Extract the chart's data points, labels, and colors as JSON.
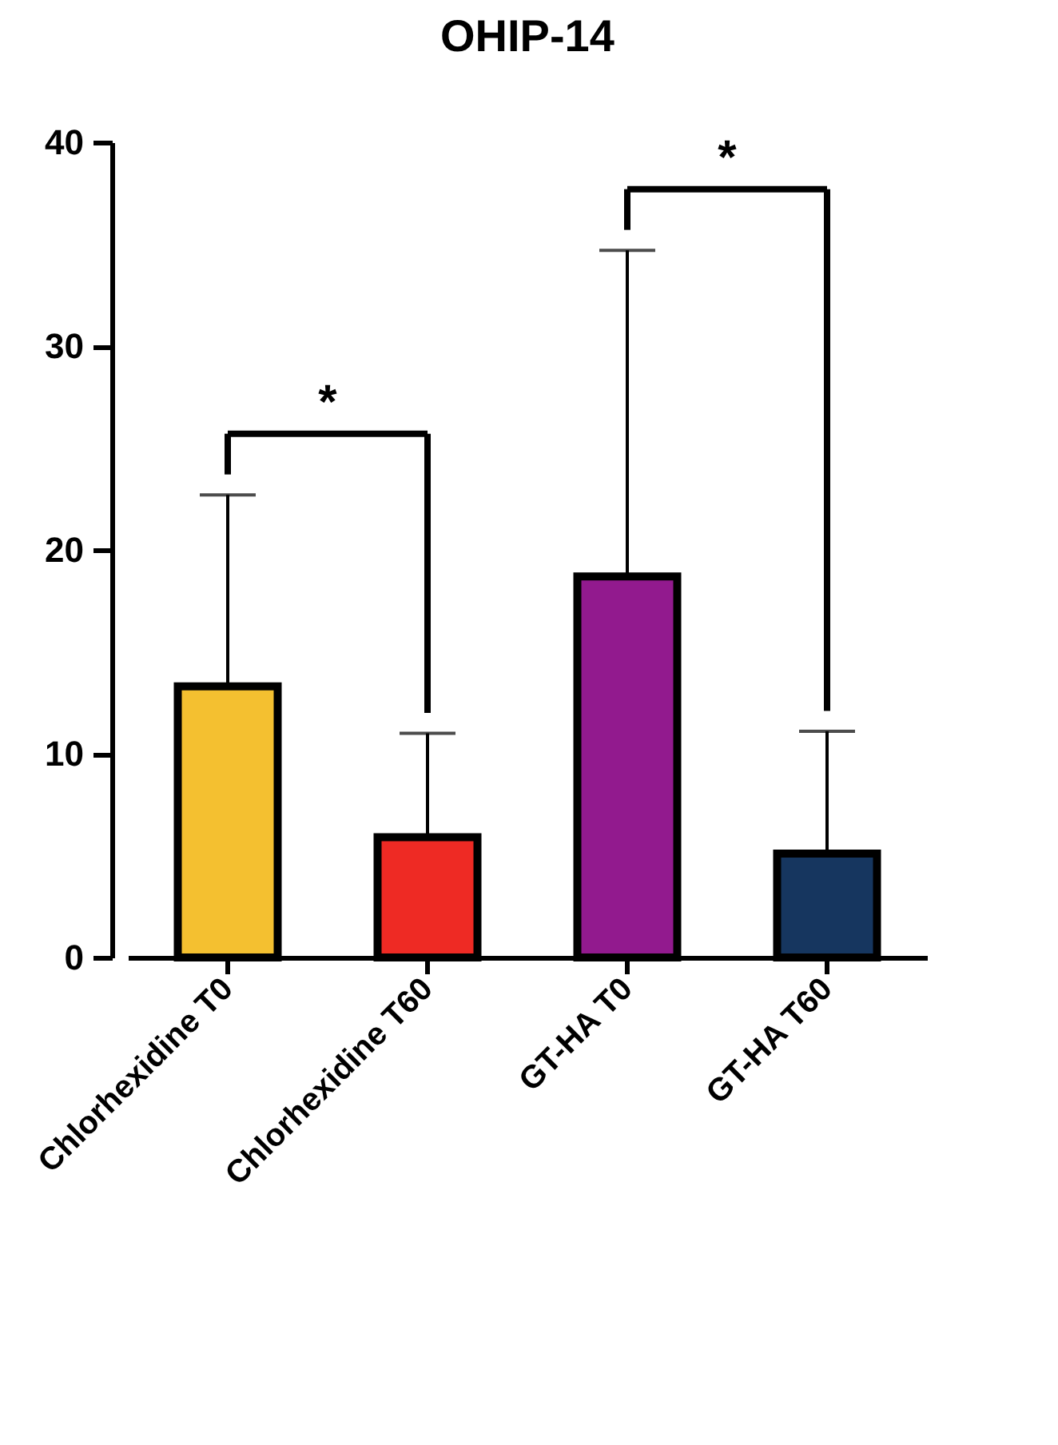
{
  "chart_data": {
    "type": "bar",
    "title": "OHIP-14",
    "categories": [
      "Chlorhexidine T0",
      "Chlorhexidine T60",
      "GT-HA T0",
      "GT-HA T60"
    ],
    "values": [
      13.3,
      5.9,
      18.7,
      5.1
    ],
    "colors": [
      "#f4c030",
      "#ee2a24",
      "#921a8e",
      "#16365f"
    ],
    "errors": [
      [
        13.3,
        22.7
      ],
      [
        5.9,
        11.0
      ],
      [
        18.7,
        34.7
      ],
      [
        5.1,
        11.1
      ]
    ],
    "ylim": [
      0,
      40
    ],
    "yticks": [
      0,
      10,
      20,
      30,
      40
    ],
    "grid": false,
    "annotations": [
      "*",
      "*"
    ]
  }
}
